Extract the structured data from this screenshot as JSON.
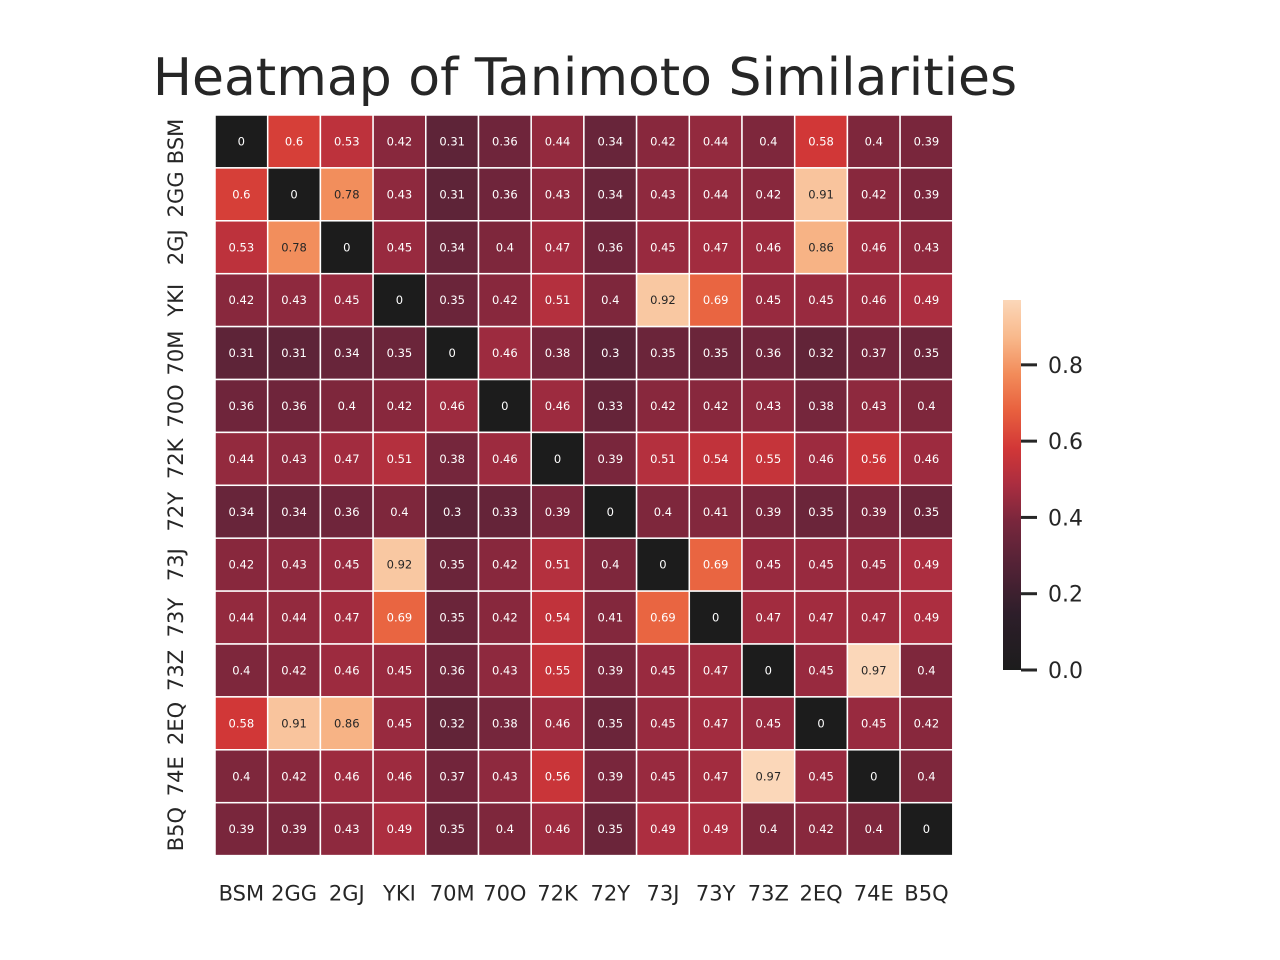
{
  "chart_data": {
    "type": "heatmap",
    "title": "Heatmap of Tanimoto Similarities",
    "xlabel": "",
    "ylabel": "",
    "x_categories": [
      "BSM",
      "2GG",
      "2GJ",
      "YKI",
      "70M",
      "70O",
      "72K",
      "72Y",
      "73J",
      "73Y",
      "73Z",
      "2EQ",
      "74E",
      "B5Q"
    ],
    "y_categories": [
      "BSM",
      "2GG",
      "2GJ",
      "YKI",
      "70M",
      "70O",
      "72K",
      "72Y",
      "73J",
      "73Y",
      "73Z",
      "2EQ",
      "74E",
      "B5Q"
    ],
    "values": [
      [
        0,
        0.6,
        0.53,
        0.42,
        0.31,
        0.36,
        0.44,
        0.34,
        0.42,
        0.44,
        0.4,
        0.58,
        0.4,
        0.39
      ],
      [
        0.6,
        0,
        0.78,
        0.43,
        0.31,
        0.36,
        0.43,
        0.34,
        0.43,
        0.44,
        0.42,
        0.91,
        0.42,
        0.39
      ],
      [
        0.53,
        0.78,
        0,
        0.45,
        0.34,
        0.4,
        0.47,
        0.36,
        0.45,
        0.47,
        0.46,
        0.86,
        0.46,
        0.43
      ],
      [
        0.42,
        0.43,
        0.45,
        0,
        0.35,
        0.42,
        0.51,
        0.4,
        0.92,
        0.69,
        0.45,
        0.45,
        0.46,
        0.49
      ],
      [
        0.31,
        0.31,
        0.34,
        0.35,
        0,
        0.46,
        0.38,
        0.3,
        0.35,
        0.35,
        0.36,
        0.32,
        0.37,
        0.35
      ],
      [
        0.36,
        0.36,
        0.4,
        0.42,
        0.46,
        0,
        0.46,
        0.33,
        0.42,
        0.42,
        0.43,
        0.38,
        0.43,
        0.4
      ],
      [
        0.44,
        0.43,
        0.47,
        0.51,
        0.38,
        0.46,
        0,
        0.39,
        0.51,
        0.54,
        0.55,
        0.46,
        0.56,
        0.46
      ],
      [
        0.34,
        0.34,
        0.36,
        0.4,
        0.3,
        0.33,
        0.39,
        0,
        0.4,
        0.41,
        0.39,
        0.35,
        0.39,
        0.35
      ],
      [
        0.42,
        0.43,
        0.45,
        0.92,
        0.35,
        0.42,
        0.51,
        0.4,
        0,
        0.69,
        0.45,
        0.45,
        0.45,
        0.49
      ],
      [
        0.44,
        0.44,
        0.47,
        0.69,
        0.35,
        0.42,
        0.54,
        0.41,
        0.69,
        0,
        0.47,
        0.47,
        0.47,
        0.49
      ],
      [
        0.4,
        0.42,
        0.46,
        0.45,
        0.36,
        0.43,
        0.55,
        0.39,
        0.45,
        0.47,
        0,
        0.45,
        0.97,
        0.4
      ],
      [
        0.58,
        0.91,
        0.86,
        0.45,
        0.32,
        0.38,
        0.46,
        0.35,
        0.45,
        0.47,
        0.45,
        0,
        0.45,
        0.42
      ],
      [
        0.4,
        0.42,
        0.46,
        0.46,
        0.37,
        0.43,
        0.56,
        0.39,
        0.45,
        0.47,
        0.97,
        0.45,
        0,
        0.4
      ],
      [
        0.39,
        0.39,
        0.43,
        0.49,
        0.35,
        0.4,
        0.46,
        0.35,
        0.49,
        0.49,
        0.4,
        0.42,
        0.4,
        0
      ]
    ],
    "value_range": [
      0,
      0.97
    ],
    "colormap": "rocket",
    "colorbar": {
      "ticks": [
        0.0,
        0.2,
        0.4,
        0.6,
        0.8
      ],
      "tick_labels": [
        "0.0",
        "0.2",
        "0.4",
        "0.6",
        "0.8"
      ],
      "placement": "right"
    },
    "annotations": true,
    "grid_lines": "white",
    "legend": "none"
  }
}
